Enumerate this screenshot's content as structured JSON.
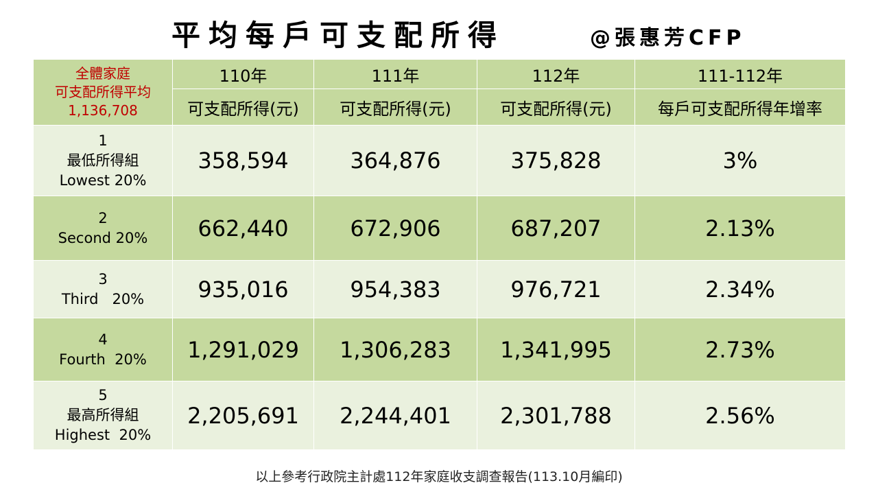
{
  "title": "平均每戶可支配所得",
  "author": "@張惠芳CFP",
  "corner": {
    "line1": "全體家庭",
    "line2": "可支配所得平均",
    "line3": "1,136,708"
  },
  "columns": [
    {
      "year": "110年",
      "sub": "可支配所得(元)"
    },
    {
      "year": "111年",
      "sub": "可支配所得(元)"
    },
    {
      "year": "112年",
      "sub": "可支配所得(元)"
    },
    {
      "year": "111-112年",
      "sub": "每戶可支配所得年增率"
    }
  ],
  "rows": [
    {
      "label": [
        "1",
        "最低所得組",
        "Lowest  20%"
      ],
      "values": [
        "358,594",
        "364,876",
        "375,828",
        "3%"
      ]
    },
    {
      "label": [
        "2",
        "Second 20%"
      ],
      "values": [
        "662,440",
        "672,906",
        "687,207",
        "2.13%"
      ]
    },
    {
      "label": [
        "3",
        "Third   20%"
      ],
      "values": [
        "935,016",
        "954,383",
        "976,721",
        "2.34%"
      ]
    },
    {
      "label": [
        "4",
        "Fourth  20%"
      ],
      "values": [
        "1,291,029",
        "1,306,283",
        "1,341,995",
        "2.73%"
      ]
    },
    {
      "label": [
        "5",
        "最高所得組",
        "Highest  20%"
      ],
      "values": [
        "2,205,691",
        "2,244,401",
        "2,301,788",
        "2.56%"
      ]
    }
  ],
  "footnote": "以上參考行政院主計處112年家庭收支調查報告(113.10月編印)",
  "colors": {
    "header_green": "#c5d99e",
    "light_green": "#eaf1de",
    "corner_red": "#c00000"
  }
}
